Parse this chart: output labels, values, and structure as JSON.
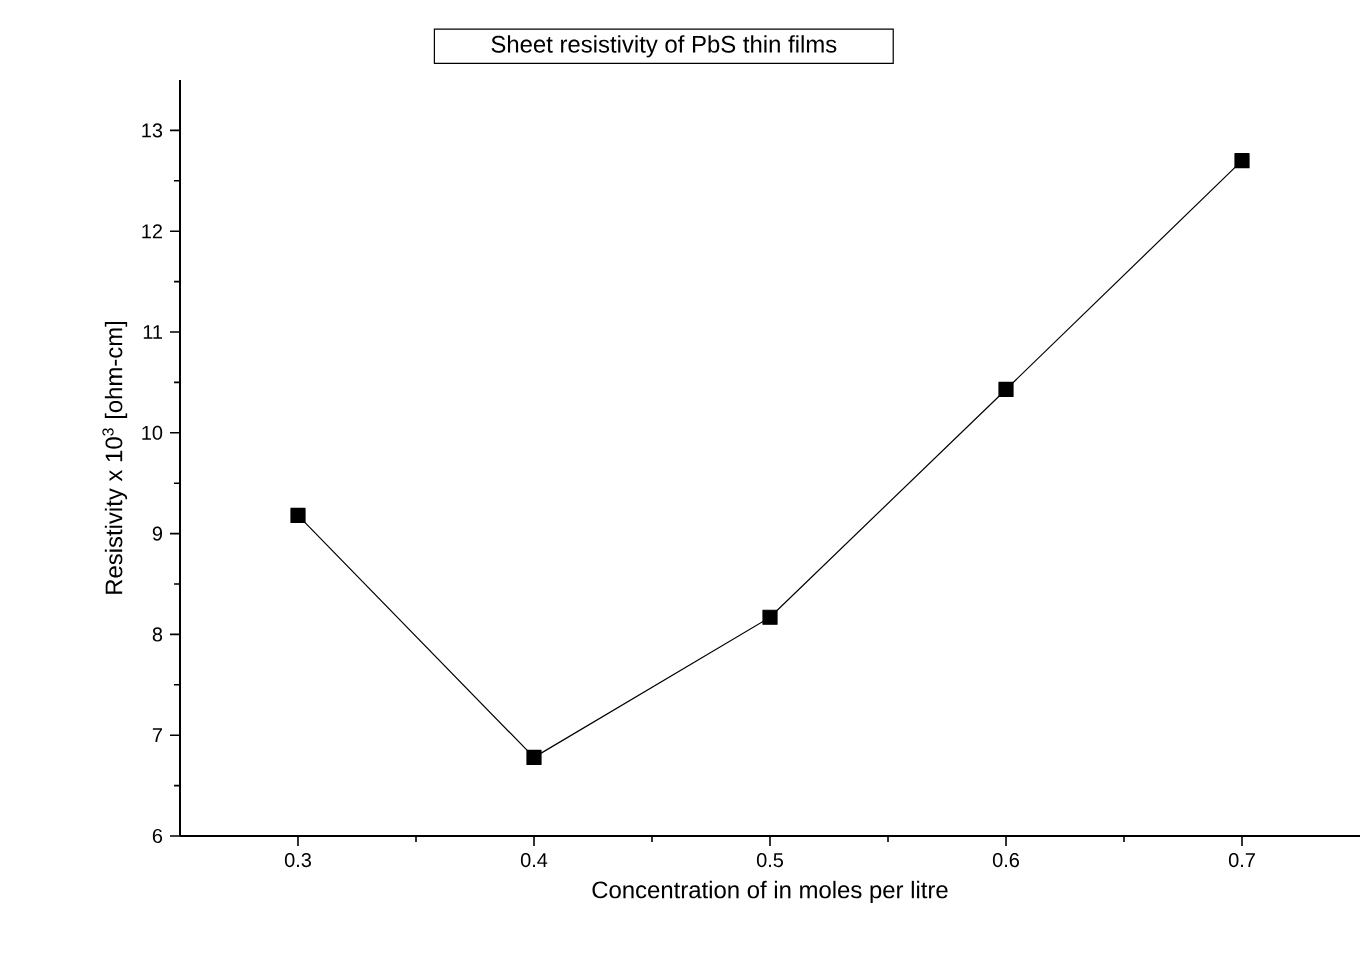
{
  "chart_data": {
    "type": "line",
    "title": "Sheet resistivity of PbS thin films",
    "xlabel": "Concentration of in moles per litre",
    "ylabel": "Resistivity x 10$^{3}$ [ohm-cm]",
    "x": [
      0.3,
      0.4,
      0.5,
      0.6,
      0.7
    ],
    "values": [
      9.18,
      6.78,
      8.17,
      10.43,
      12.7
    ],
    "color": "#000000",
    "marker": "square",
    "line_style": "solid",
    "xlim": [
      0.25,
      0.75
    ],
    "ylim": [
      6,
      13.5
    ],
    "xticks": [
      0.3,
      0.4,
      0.5,
      0.6,
      0.7
    ],
    "yticks": [
      6,
      7,
      8,
      9,
      10,
      11,
      12,
      13
    ]
  }
}
